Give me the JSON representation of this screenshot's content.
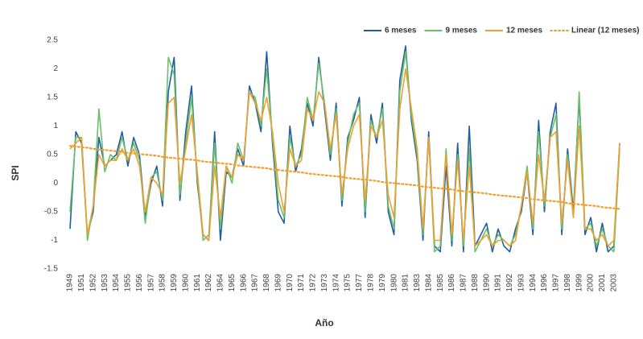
{
  "chart_data": {
    "type": "line",
    "xlabel": "Año",
    "ylabel": "SPI",
    "ylim": [
      -1.5,
      2.5
    ],
    "yticks": [
      -1.5,
      -1,
      -0.5,
      0,
      0.5,
      1,
      1.5,
      2,
      2.5
    ],
    "legend": "top-right",
    "categories": [
      "1949",
      null,
      "1951",
      null,
      "1952",
      null,
      "1953",
      null,
      "1954",
      null,
      "1955",
      null,
      "1956",
      null,
      "1957",
      null,
      "1958",
      null,
      "1959",
      null,
      "1960",
      null,
      "1961",
      null,
      "1962",
      null,
      "1964",
      null,
      "1965",
      null,
      "1966",
      null,
      "1967",
      null,
      "1968",
      null,
      "1969",
      null,
      "1970",
      null,
      "1971",
      null,
      "1972",
      null,
      "1973",
      null,
      "1974",
      null,
      "1975",
      null,
      "1977",
      null,
      "1978",
      null,
      "1979",
      null,
      "1980",
      null,
      "1981",
      null,
      "1983",
      null,
      "1984",
      null,
      "1985",
      null,
      "1986",
      null,
      "1987",
      null,
      "1988",
      null,
      "1990",
      null,
      "1991",
      null,
      "1992",
      null,
      "1993",
      null,
      "1994",
      null,
      "1996",
      null,
      "1997",
      null,
      "1998",
      null,
      "1999",
      null,
      "2000",
      null,
      "2001",
      null,
      "2003",
      null
    ],
    "series": [
      {
        "name": "6 meses",
        "color": "#1f5fa0",
        "style": "solid",
        "values": [
          -0.8,
          0.9,
          0.7,
          -0.9,
          -0.5,
          0.8,
          0.3,
          0.4,
          0.5,
          0.9,
          0.3,
          0.8,
          0.5,
          -0.6,
          0.0,
          0.3,
          -0.4,
          1.6,
          2.2,
          -0.3,
          0.9,
          1.7,
          0.0,
          -0.9,
          -1.0,
          0.9,
          -1.0,
          0.2,
          0.1,
          0.6,
          0.3,
          1.7,
          1.4,
          0.9,
          2.3,
          0.7,
          -0.5,
          -0.7,
          1.0,
          0.2,
          0.6,
          1.4,
          1.0,
          2.2,
          1.3,
          0.4,
          1.4,
          -0.4,
          0.8,
          1.1,
          1.5,
          -0.6,
          1.2,
          0.7,
          1.4,
          -0.5,
          -0.9,
          1.8,
          2.4,
          1.1,
          0.4,
          -1.0,
          0.9,
          -1.1,
          -1.2,
          0.3,
          -1.1,
          0.7,
          -1.2,
          1.0,
          -1.1,
          -0.9,
          -0.7,
          -1.2,
          -0.8,
          -1.1,
          -1.2,
          -0.8,
          -0.5,
          0.2,
          -0.9,
          1.1,
          -0.5,
          0.9,
          1.4,
          -0.9,
          0.6,
          -0.5,
          1.5,
          -0.9,
          -0.6,
          -1.2,
          -0.7,
          -1.2,
          -1.1,
          0.7
        ]
      },
      {
        "name": "9 meses",
        "color": "#6abf69",
        "style": "solid",
        "values": [
          -0.5,
          0.8,
          0.8,
          -1.0,
          -0.4,
          1.3,
          0.2,
          0.5,
          0.4,
          0.8,
          0.4,
          0.7,
          0.4,
          -0.7,
          0.1,
          0.2,
          -0.3,
          2.2,
          1.9,
          -0.2,
          0.7,
          1.5,
          0.1,
          -1.0,
          -0.9,
          0.7,
          -0.8,
          0.3,
          0.0,
          0.7,
          0.4,
          1.6,
          1.5,
          1.0,
          2.0,
          0.8,
          -0.3,
          -0.6,
          0.8,
          0.3,
          0.5,
          1.5,
          1.1,
          2.1,
          1.4,
          0.5,
          1.3,
          -0.3,
          0.7,
          1.2,
          1.4,
          -0.5,
          1.1,
          0.8,
          1.3,
          -0.4,
          -0.8,
          1.6,
          2.3,
          1.2,
          0.5,
          -0.9,
          0.8,
          -1.2,
          -1.1,
          0.6,
          -1.0,
          0.5,
          -1.1,
          0.6,
          -1.2,
          -1.0,
          -0.8,
          -1.1,
          -0.9,
          -1.0,
          -1.1,
          -0.9,
          -0.4,
          0.3,
          -0.8,
          0.9,
          -0.4,
          0.8,
          1.2,
          -0.8,
          0.5,
          -0.6,
          1.6,
          -0.8,
          -0.7,
          -1.1,
          -0.8,
          -1.1,
          -1.2,
          0.6
        ]
      },
      {
        "name": "12 meses",
        "color": "#f0a030",
        "style": "solid",
        "values": [
          0.6,
          0.7,
          0.8,
          -0.9,
          -0.4,
          0.5,
          0.3,
          0.4,
          0.4,
          0.6,
          0.4,
          0.6,
          0.3,
          -0.5,
          0.1,
          0.0,
          -0.2,
          1.4,
          1.5,
          0.0,
          0.6,
          1.2,
          0.2,
          -0.9,
          -1.0,
          0.3,
          -0.6,
          0.3,
          0.1,
          0.5,
          0.4,
          1.6,
          1.4,
          1.1,
          1.5,
          0.9,
          0.0,
          -0.5,
          0.6,
          0.3,
          0.4,
          1.3,
          1.1,
          1.6,
          1.4,
          0.6,
          1.2,
          -0.2,
          0.6,
          1.0,
          1.2,
          -0.3,
          1.0,
          0.8,
          1.1,
          -0.2,
          -0.6,
          1.3,
          2.0,
          1.3,
          0.6,
          -0.8,
          0.8,
          -1.0,
          -1.0,
          0.5,
          -0.9,
          0.4,
          -1.0,
          0.3,
          -1.1,
          -1.0,
          -0.9,
          -1.1,
          -1.0,
          -1.0,
          -1.1,
          -1.0,
          -0.4,
          0.2,
          -0.7,
          0.5,
          -0.3,
          0.8,
          0.9,
          -0.7,
          0.4,
          -0.6,
          1.0,
          -0.8,
          -0.8,
          -1.0,
          -0.9,
          -1.1,
          -1.0,
          0.7
        ]
      },
      {
        "name": "Linear (12 meses)",
        "color": "#f0a030",
        "style": "dotted",
        "values": [
          0.65,
          0.64,
          0.63,
          0.62,
          0.6,
          0.59,
          0.58,
          0.57,
          0.56,
          0.55,
          0.53,
          0.52,
          0.51,
          0.5,
          0.49,
          0.48,
          0.46,
          0.45,
          0.44,
          0.43,
          0.42,
          0.41,
          0.4,
          0.38,
          0.37,
          0.36,
          0.35,
          0.34,
          0.33,
          0.31,
          0.3,
          0.29,
          0.28,
          0.27,
          0.26,
          0.24,
          0.23,
          0.22,
          0.21,
          0.2,
          0.19,
          0.17,
          0.16,
          0.15,
          0.14,
          0.13,
          0.12,
          0.11,
          0.09,
          0.08,
          0.07,
          0.06,
          0.05,
          0.04,
          0.02,
          0.01,
          0.0,
          -0.01,
          -0.02,
          -0.03,
          -0.04,
          -0.06,
          -0.07,
          -0.08,
          -0.09,
          -0.1,
          -0.11,
          -0.13,
          -0.14,
          -0.15,
          -0.16,
          -0.17,
          -0.18,
          -0.2,
          -0.21,
          -0.22,
          -0.23,
          -0.24,
          -0.25,
          -0.26,
          -0.28,
          -0.29,
          -0.3,
          -0.31,
          -0.32,
          -0.33,
          -0.35,
          -0.36,
          -0.37,
          -0.38,
          -0.39,
          -0.4,
          -0.42,
          -0.43,
          -0.44,
          -0.45
        ]
      }
    ]
  }
}
